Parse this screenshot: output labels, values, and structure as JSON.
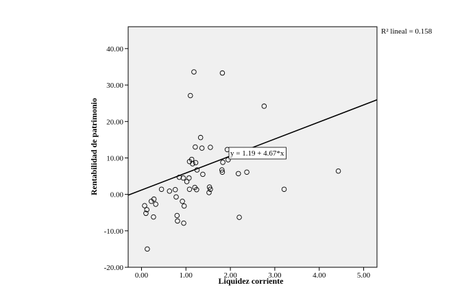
{
  "chart_data": {
    "type": "scatter",
    "xlabel": "Liquidez corriente",
    "ylabel": "Rentabilidad de patrimonio",
    "xlim": [
      -0.3,
      5.3
    ],
    "ylim": [
      -20,
      46
    ],
    "x_ticks": [
      0,
      1,
      2,
      3,
      4,
      5
    ],
    "x_tick_labels": [
      "0.00",
      "1.00",
      "2.00",
      "3.00",
      "4.00",
      "5.00"
    ],
    "y_ticks": [
      -20,
      -10,
      0,
      10,
      20,
      30,
      40
    ],
    "y_tick_labels": [
      "-20.00",
      "-10.00",
      "0.00",
      "10.00",
      "20.00",
      "30.00",
      "40.00"
    ],
    "grid": false,
    "background": "#f0f0f0",
    "marker": "open-circle",
    "points": [
      [
        0.07,
        -3.1
      ],
      [
        0.1,
        -5.2
      ],
      [
        0.12,
        -4.2
      ],
      [
        0.13,
        -15.0
      ],
      [
        0.22,
        -1.9
      ],
      [
        0.27,
        -6.2
      ],
      [
        0.28,
        -1.3
      ],
      [
        0.32,
        -2.7
      ],
      [
        0.45,
        1.4
      ],
      [
        0.63,
        0.9
      ],
      [
        0.76,
        1.3
      ],
      [
        0.78,
        -0.7
      ],
      [
        0.8,
        -5.8
      ],
      [
        0.81,
        -7.3
      ],
      [
        0.85,
        4.7
      ],
      [
        0.92,
        -1.9
      ],
      [
        0.94,
        4.5
      ],
      [
        0.95,
        -7.9
      ],
      [
        0.96,
        -3.2
      ],
      [
        1.02,
        3.5
      ],
      [
        1.07,
        4.5
      ],
      [
        1.08,
        1.4
      ],
      [
        1.08,
        9.0
      ],
      [
        1.13,
        9.6
      ],
      [
        1.15,
        8.4
      ],
      [
        1.18,
        33.6
      ],
      [
        1.1,
        27.1
      ],
      [
        1.2,
        1.9
      ],
      [
        1.21,
        13.0
      ],
      [
        1.22,
        8.7
      ],
      [
        1.24,
        1.3
      ],
      [
        1.25,
        6.7
      ],
      [
        1.33,
        15.6
      ],
      [
        1.36,
        12.7
      ],
      [
        1.38,
        5.5
      ],
      [
        1.52,
        0.5
      ],
      [
        1.53,
        2.0
      ],
      [
        1.55,
        1.4
      ],
      [
        1.55,
        12.9
      ],
      [
        1.81,
        6.7
      ],
      [
        1.82,
        33.3
      ],
      [
        1.82,
        6.1
      ],
      [
        1.83,
        8.8
      ],
      [
        1.93,
        12.3
      ],
      [
        1.95,
        9.5
      ],
      [
        2.18,
        5.7
      ],
      [
        2.2,
        -6.3
      ],
      [
        2.27,
        12.0
      ],
      [
        2.37,
        6.1
      ],
      [
        2.76,
        24.2
      ],
      [
        3.21,
        1.4
      ],
      [
        4.43,
        6.4
      ]
    ],
    "fit_line": {
      "intercept": 1.19,
      "slope": 4.67
    },
    "fit_equation_label": "y = 1.19 + 4.67*x",
    "r2_label": "R² lineal = 0.158"
  }
}
